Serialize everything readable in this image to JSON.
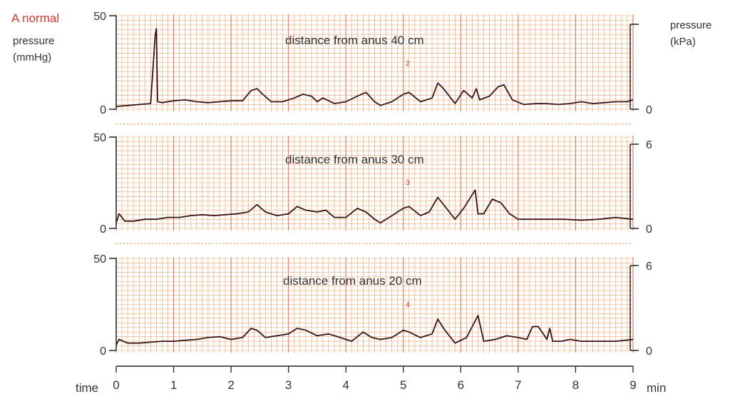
{
  "colors": {
    "grid": "#f0a777",
    "grid_major": "#e2764a",
    "accent_text": "#d8392b",
    "trace": "#3a1412",
    "axis": "#222222",
    "text": "#333333"
  },
  "figure": {
    "label": "A  normal",
    "left_axis_label_line1": "pressure",
    "left_axis_label_line2": "(mmHg)",
    "right_axis_label_line1": "pressure",
    "right_axis_label_line2": "(kPa)",
    "time_label": "time",
    "time_unit": "min"
  },
  "chart_data": [
    {
      "type": "line",
      "title": "distance from anus 40 cm",
      "channel_mark": "2",
      "ylim_mmHg": [
        0,
        50
      ],
      "ylim_kPa": [
        0,
        6
      ],
      "left_ticks": [
        "50",
        "0"
      ],
      "right_ticks": [
        "",
        "0"
      ],
      "xlim_min": [
        0,
        9
      ],
      "grid": true,
      "series": [
        {
          "x": [
            0,
            0.2,
            0.4,
            0.6,
            0.68,
            0.7,
            0.72,
            0.8,
            1.0,
            1.2,
            1.4,
            1.6,
            1.8,
            2.0,
            2.2,
            2.35,
            2.45,
            2.55,
            2.7,
            2.9,
            3.1,
            3.25,
            3.4,
            3.5,
            3.6,
            3.8,
            4.0,
            4.2,
            4.35,
            4.5,
            4.6,
            4.8,
            5.0,
            5.1,
            5.3,
            5.5,
            5.6,
            5.7,
            5.9,
            6.05,
            6.2,
            6.27,
            6.33,
            6.5,
            6.65,
            6.75,
            6.9,
            7.1,
            7.3,
            7.5,
            7.7,
            7.9,
            8.1,
            8.3,
            8.5,
            8.7,
            8.9,
            9.0
          ],
          "y": [
            1.5,
            2,
            2.5,
            3,
            40,
            43,
            4,
            3.5,
            4.5,
            5,
            4,
            3.5,
            4,
            4.5,
            4.5,
            10,
            11,
            8,
            4,
            4,
            6,
            8,
            7,
            4,
            6,
            3,
            4,
            7,
            9,
            4,
            2,
            4,
            8,
            9,
            4,
            6,
            14,
            11,
            3,
            10,
            6,
            11,
            5,
            7,
            12,
            13,
            5,
            2.5,
            3,
            3,
            2.5,
            3,
            4,
            3,
            3.5,
            4,
            4,
            5
          ]
        }
      ]
    },
    {
      "type": "line",
      "title": "distance from anus 30 cm",
      "channel_mark": "3",
      "ylim_mmHg": [
        0,
        50
      ],
      "ylim_kPa": [
        0,
        6
      ],
      "left_ticks": [
        "50",
        "0"
      ],
      "right_ticks": [
        "6",
        "0"
      ],
      "xlim_min": [
        0,
        9
      ],
      "grid": true,
      "series": [
        {
          "x": [
            0,
            0.05,
            0.15,
            0.3,
            0.5,
            0.7,
            0.9,
            1.1,
            1.3,
            1.5,
            1.7,
            1.9,
            2.1,
            2.3,
            2.45,
            2.6,
            2.8,
            3.0,
            3.15,
            3.3,
            3.5,
            3.65,
            3.8,
            4.0,
            4.2,
            4.35,
            4.5,
            4.6,
            4.8,
            5.0,
            5.1,
            5.3,
            5.45,
            5.6,
            5.7,
            5.9,
            6.05,
            6.25,
            6.3,
            6.4,
            6.55,
            6.7,
            6.85,
            7.0,
            7.2,
            7.5,
            7.8,
            8.1,
            8.4,
            8.7,
            9.0
          ],
          "y": [
            3,
            8,
            4,
            4,
            5,
            5,
            6,
            6,
            7,
            7.5,
            7,
            7.5,
            8,
            9,
            13,
            9,
            7,
            8,
            12,
            10,
            9,
            10,
            6,
            6,
            11,
            9,
            5,
            3,
            7,
            11,
            12,
            7,
            9,
            17,
            13,
            5,
            11,
            21,
            8,
            8,
            16,
            14,
            8,
            5,
            5,
            5,
            5,
            4.5,
            5,
            6,
            5
          ]
        }
      ]
    },
    {
      "type": "line",
      "title": "distance from anus 20 cm",
      "channel_mark": "4",
      "ylim_mmHg": [
        0,
        50
      ],
      "ylim_kPa": [
        0,
        6
      ],
      "left_ticks": [
        "50",
        "0"
      ],
      "right_ticks": [
        "6",
        "0"
      ],
      "xlim_min": [
        0,
        9
      ],
      "grid": true,
      "series": [
        {
          "x": [
            0,
            0.05,
            0.2,
            0.4,
            0.6,
            0.8,
            1.0,
            1.2,
            1.4,
            1.6,
            1.8,
            2.0,
            2.2,
            2.35,
            2.45,
            2.6,
            2.8,
            3.0,
            3.15,
            3.3,
            3.5,
            3.7,
            3.9,
            4.1,
            4.3,
            4.45,
            4.6,
            4.8,
            5.0,
            5.1,
            5.3,
            5.5,
            5.6,
            5.7,
            5.9,
            6.1,
            6.25,
            6.3,
            6.4,
            6.6,
            6.8,
            7.0,
            7.15,
            7.25,
            7.35,
            7.5,
            7.55,
            7.6,
            7.75,
            7.9,
            8.1,
            8.4,
            8.7,
            9.0
          ],
          "y": [
            3,
            6,
            4,
            4,
            4.5,
            5,
            5,
            5.5,
            6,
            7,
            7.5,
            6,
            7,
            12,
            11,
            7,
            8,
            9,
            12,
            11,
            8,
            9,
            7,
            5,
            10,
            7,
            6,
            7,
            11,
            10,
            7,
            9,
            17,
            12,
            4,
            7,
            16,
            19,
            5,
            6,
            8,
            7,
            6,
            13,
            13,
            6,
            12,
            5,
            5,
            6,
            5,
            5,
            5,
            6
          ]
        }
      ]
    }
  ],
  "x_axis": {
    "ticks": [
      "0",
      "1",
      "2",
      "3",
      "4",
      "5",
      "6",
      "7",
      "8",
      "9"
    ]
  }
}
